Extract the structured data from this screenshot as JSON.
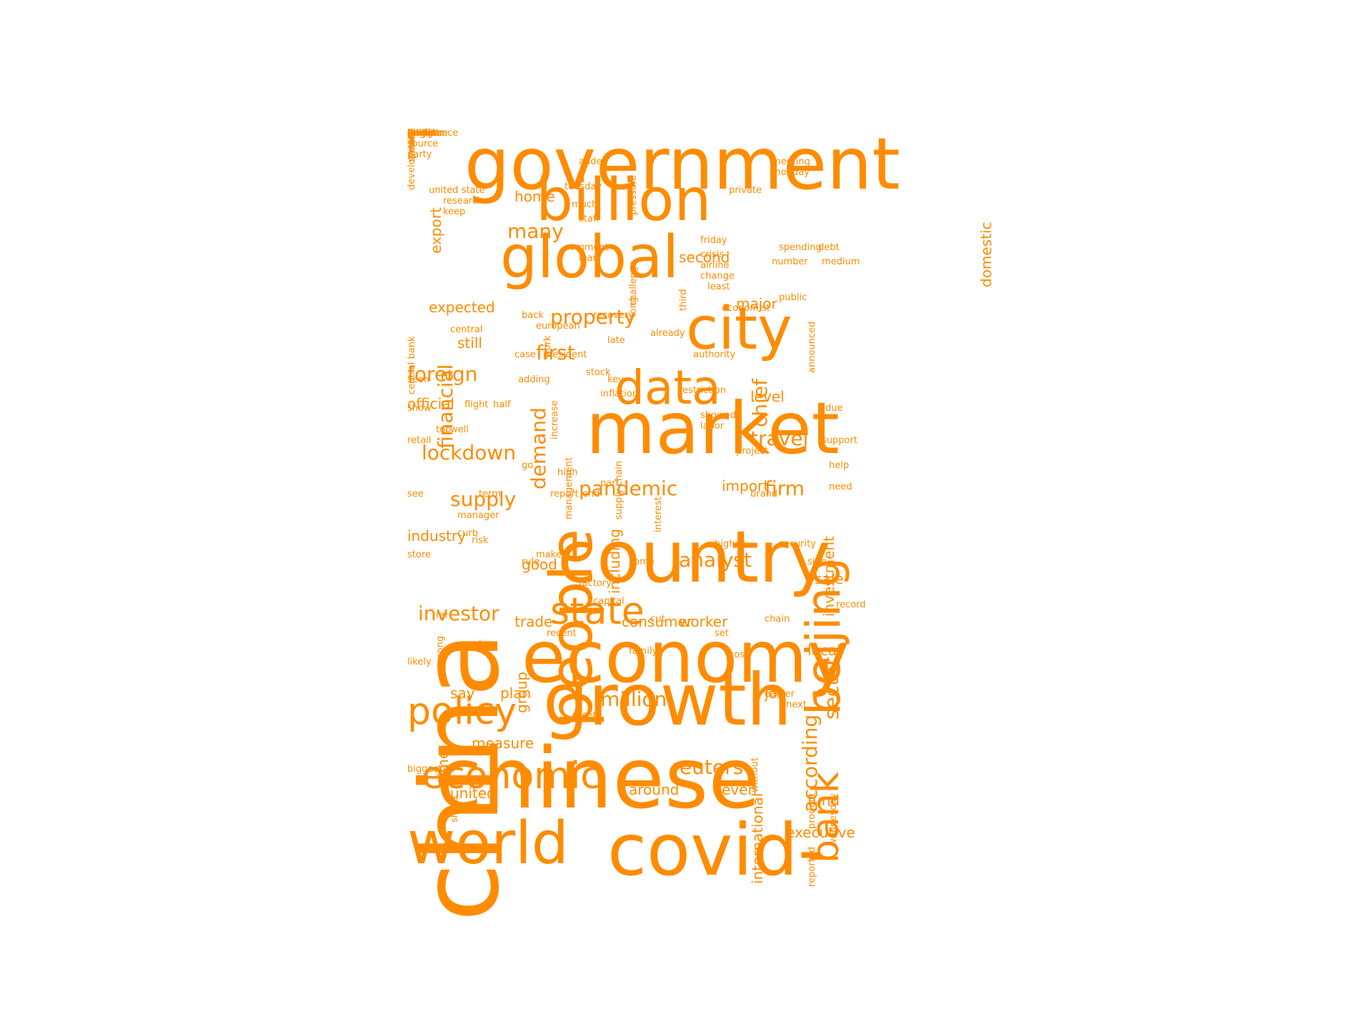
{
  "colors": {
    "word": "#ff8c00",
    "background": "#ffffff"
  },
  "words": [
    {
      "text": "china",
      "weight": 10,
      "vertical": true
    },
    {
      "text": "government",
      "weight": 8
    },
    {
      "text": "billion",
      "weight": 7
    },
    {
      "text": "global",
      "weight": 7
    },
    {
      "text": "beijing",
      "weight": 6,
      "vertical": true
    },
    {
      "text": "city",
      "weight": 7
    },
    {
      "text": "people",
      "weight": 7,
      "vertical": true
    },
    {
      "text": "market",
      "weight": 8
    },
    {
      "text": "data",
      "weight": 6
    },
    {
      "text": "country",
      "weight": 8
    },
    {
      "text": "economy",
      "weight": 8
    },
    {
      "text": "growth",
      "weight": 8
    },
    {
      "text": "chinese",
      "weight": 9
    },
    {
      "text": "world",
      "weight": 7
    },
    {
      "text": "covid-",
      "weight": 8
    },
    {
      "text": "economic",
      "weight": 5
    },
    {
      "text": "policy",
      "weight": 5
    },
    {
      "text": "state",
      "weight": 5
    },
    {
      "text": "bank",
      "weight": 5,
      "vertical": true
    },
    {
      "text": "financial",
      "weight": 3,
      "vertical": true
    },
    {
      "text": "property",
      "weight": 3
    },
    {
      "text": "first",
      "weight": 3
    },
    {
      "text": "home",
      "weight": 2
    },
    {
      "text": "many",
      "weight": 3
    },
    {
      "text": "demand",
      "weight": 3,
      "vertical": true
    },
    {
      "text": "foreign",
      "weight": 3
    },
    {
      "text": "official",
      "weight": 2
    },
    {
      "text": "lockdown",
      "weight": 3
    },
    {
      "text": "supply",
      "weight": 3
    },
    {
      "text": "industry",
      "weight": 2
    },
    {
      "text": "investor",
      "weight": 3
    },
    {
      "text": "pandemic",
      "weight": 3
    },
    {
      "text": "firm",
      "weight": 3
    },
    {
      "text": "analyst",
      "weight": 3
    },
    {
      "text": "including",
      "weight": 2,
      "vertical": true
    },
    {
      "text": "group",
      "weight": 2,
      "vertical": true
    },
    {
      "text": "reuters",
      "weight": 3
    },
    {
      "text": "around",
      "weight": 2
    },
    {
      "text": "million",
      "weight": 3
    },
    {
      "text": "sector",
      "weight": 3,
      "vertical": true
    },
    {
      "text": "according",
      "weight": 3,
      "vertical": true
    },
    {
      "text": "investment",
      "weight": 2,
      "vertical": true
    },
    {
      "text": "chief",
      "weight": 3,
      "vertical": true
    },
    {
      "text": "travel",
      "weight": 3
    },
    {
      "text": "job",
      "weight": 2
    },
    {
      "text": "trade",
      "weight": 2
    },
    {
      "text": "say",
      "weight": 2
    },
    {
      "text": "plan",
      "weight": 2
    },
    {
      "text": "time",
      "weight": 2,
      "vertical": true
    },
    {
      "text": "measure",
      "weight": 2
    },
    {
      "text": "united",
      "weight": 2
    },
    {
      "text": "even",
      "weight": 2
    },
    {
      "text": "fund",
      "weight": 2
    },
    {
      "text": "executive",
      "weight": 2
    },
    {
      "text": "local",
      "weight": 2
    },
    {
      "text": "sale",
      "weight": 2
    },
    {
      "text": "consumer",
      "weight": 2
    },
    {
      "text": "worker",
      "weight": 2
    },
    {
      "text": "good",
      "weight": 2
    },
    {
      "text": "level",
      "weight": 2
    },
    {
      "text": "import",
      "weight": 2
    },
    {
      "text": "major",
      "weight": 2
    },
    {
      "text": "second",
      "weight": 2
    },
    {
      "text": "still",
      "weight": 2
    },
    {
      "text": "expected",
      "weight": 2
    },
    {
      "text": "export",
      "weight": 2,
      "vertical": true
    },
    {
      "text": "domestic",
      "weight": 2,
      "vertical": true
    },
    {
      "text": "international",
      "weight": 2,
      "vertical": true
    },
    {
      "text": "source",
      "weight": 1
    },
    {
      "text": "party",
      "weight": 1
    },
    {
      "text": "united state",
      "weight": 1
    },
    {
      "text": "research",
      "weight": 1
    },
    {
      "text": "keep",
      "weight": 1
    },
    {
      "text": "added",
      "weight": 1
    },
    {
      "text": "tuesday",
      "weight": 1
    },
    {
      "text": "pressure",
      "weight": 1,
      "vertical": true
    },
    {
      "text": "challenge",
      "weight": 1,
      "vertical": true
    },
    {
      "text": "much",
      "weight": 1
    },
    {
      "text": "staff",
      "weight": 1
    },
    {
      "text": "private",
      "weight": 1
    },
    {
      "text": "meeting",
      "weight": 1
    },
    {
      "text": "monday",
      "weight": 1
    },
    {
      "text": "friday",
      "weight": 1
    },
    {
      "text": "crisis",
      "weight": 1
    },
    {
      "text": "airline",
      "weight": 1
    },
    {
      "text": "change",
      "weight": 1
    },
    {
      "text": "least",
      "weight": 1
    },
    {
      "text": "comment",
      "weight": 1
    },
    {
      "text": "loan",
      "weight": 1
    },
    {
      "text": "third",
      "weight": 1,
      "vertical": true
    },
    {
      "text": "spending",
      "weight": 1
    },
    {
      "text": "debt",
      "weight": 1
    },
    {
      "text": "number",
      "weight": 1
    },
    {
      "text": "medium",
      "weight": 1
    },
    {
      "text": "central bank",
      "weight": 1,
      "vertical": true
    },
    {
      "text": "work",
      "weight": 1,
      "vertical": true
    },
    {
      "text": "central",
      "weight": 1
    },
    {
      "text": "public",
      "weight": 1
    },
    {
      "text": "economist",
      "weight": 1
    },
    {
      "text": "back",
      "weight": 1
    },
    {
      "text": "recovery",
      "weight": 1
    },
    {
      "text": "european",
      "weight": 1
    },
    {
      "text": "long",
      "weight": 1,
      "vertical": true
    },
    {
      "text": "already",
      "weight": 1
    },
    {
      "text": "late",
      "weight": 1
    },
    {
      "text": "case",
      "weight": 1
    },
    {
      "text": "president",
      "weight": 1
    },
    {
      "text": "authority",
      "weight": 1
    },
    {
      "text": "announced",
      "weight": 1,
      "vertical": true
    },
    {
      "text": "adding",
      "weight": 1
    },
    {
      "text": "seen",
      "weight": 1
    },
    {
      "text": "stock",
      "weight": 1
    },
    {
      "text": "key",
      "weight": 1
    },
    {
      "text": "inflation",
      "weight": 1
    },
    {
      "text": "restriction",
      "weight": 1
    },
    {
      "text": "increase",
      "weight": 1,
      "vertical": true
    },
    {
      "text": "flight",
      "weight": 1
    },
    {
      "text": "half",
      "weight": 1
    },
    {
      "text": "show",
      "weight": 1
    },
    {
      "text": "showed",
      "weight": 1
    },
    {
      "text": "labor",
      "weight": 1
    },
    {
      "text": "due",
      "weight": 1
    },
    {
      "text": "top",
      "weight": 1
    },
    {
      "text": "well",
      "weight": 1
    },
    {
      "text": "supply chain",
      "weight": 1,
      "vertical": true
    },
    {
      "text": "interest",
      "weight": 1,
      "vertical": true
    },
    {
      "text": "management",
      "weight": 1,
      "vertical": true
    },
    {
      "text": "retail",
      "weight": 1
    },
    {
      "text": "support",
      "weight": 1
    },
    {
      "text": "project",
      "weight": 1
    },
    {
      "text": "go",
      "weight": 1
    },
    {
      "text": "help",
      "weight": 1
    },
    {
      "text": "high",
      "weight": 1
    },
    {
      "text": "part",
      "weight": 1
    },
    {
      "text": "end",
      "weight": 1
    },
    {
      "text": "report",
      "weight": 1
    },
    {
      "text": "brand",
      "weight": 1
    },
    {
      "text": "need",
      "weight": 1
    },
    {
      "text": "see",
      "weight": 1
    },
    {
      "text": "term",
      "weight": 1
    },
    {
      "text": "manager",
      "weight": 1
    },
    {
      "text": "curb",
      "weight": 1
    },
    {
      "text": "risk",
      "weight": 1
    },
    {
      "text": "higher",
      "weight": 1
    },
    {
      "text": "security",
      "weight": 1
    },
    {
      "text": "store",
      "weight": 1
    },
    {
      "text": "rule",
      "weight": 1
    },
    {
      "text": "come",
      "weight": 1
    },
    {
      "text": "sign",
      "weight": 1
    },
    {
      "text": "capital",
      "weight": 1
    },
    {
      "text": "cut",
      "weight": 1
    },
    {
      "text": "chain",
      "weight": 1
    },
    {
      "text": "far",
      "weight": 1
    },
    {
      "text": "factory",
      "weight": 1
    },
    {
      "text": "among",
      "weight": 1,
      "vertical": true
    },
    {
      "text": "le",
      "weight": 1
    },
    {
      "text": "recent",
      "weight": 1
    },
    {
      "text": "set",
      "weight": 1
    },
    {
      "text": "cost",
      "weight": 1
    },
    {
      "text": "family",
      "weight": 1
    },
    {
      "text": "record",
      "weight": 1
    },
    {
      "text": "make",
      "weight": 1
    },
    {
      "text": "likely",
      "weight": 1
    },
    {
      "text": "asset",
      "weight": 1
    },
    {
      "text": "next",
      "weight": 1
    },
    {
      "text": "earlier",
      "weight": 1
    },
    {
      "text": "without",
      "weight": 1,
      "vertical": true
    },
    {
      "text": "product",
      "weight": 1,
      "vertical": true
    },
    {
      "text": "wednesday",
      "weight": 1,
      "vertical": true
    },
    {
      "text": "biggest",
      "weight": 1
    },
    {
      "text": "south",
      "weight": 1
    },
    {
      "text": "share",
      "weight": 1,
      "vertical": true
    },
    {
      "text": "reported",
      "weight": 1,
      "vertical": true
    },
    {
      "text": "dollar",
      "weight": 1
    },
    {
      "text": "continue",
      "weight": 1
    },
    {
      "text": "minister",
      "weight": 1
    },
    {
      "text": "development",
      "weight": 1,
      "vertical": true
    },
    {
      "text": "director",
      "weight": 1
    },
    {
      "text": "europe",
      "weight": 1
    },
    {
      "text": "largest",
      "weight": 1
    },
    {
      "text": "tax",
      "weight": 1
    },
    {
      "text": "port",
      "weight": 1
    },
    {
      "text": "take",
      "weight": 1,
      "vertical": true
    },
    {
      "text": "service",
      "weight": 1,
      "vertical": true
    },
    {
      "text": "past",
      "weight": 1
    },
    {
      "text": "rising",
      "weight": 1
    },
    {
      "text": "confidence",
      "weight": 1
    },
    {
      "text": "another",
      "weight": 1
    },
    {
      "text": "made",
      "weight": 1
    },
    {
      "text": "target",
      "weight": 1
    },
    {
      "text": "deal",
      "weight": 1
    },
    {
      "text": "hit",
      "weight": 1
    },
    {
      "text": "early",
      "weight": 1,
      "vertical": true
    }
  ]
}
